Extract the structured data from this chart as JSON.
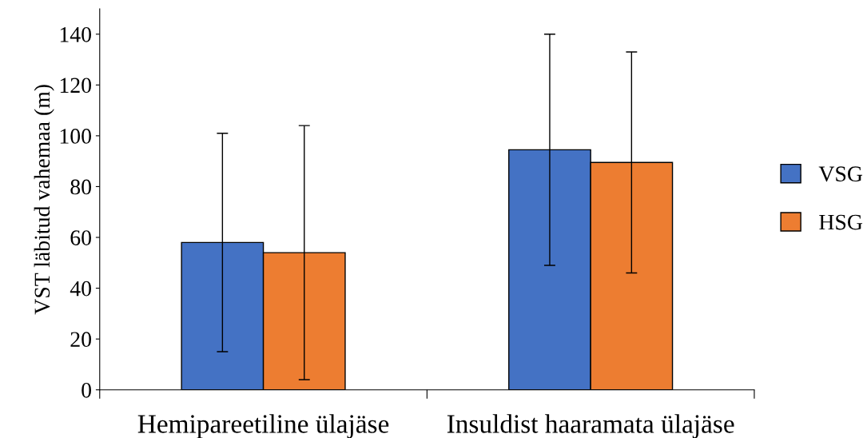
{
  "chart_data": {
    "type": "bar",
    "ylabel": "VST läbitud vahemaa (m)",
    "categories": [
      "Hemipareetiline ülajäse",
      "Insuldist haaramata ülajäse"
    ],
    "series": [
      {
        "name": "VSG",
        "color": "#4472c4",
        "values": [
          58,
          94.5
        ],
        "errors": [
          43,
          45.5
        ]
      },
      {
        "name": "HSG",
        "color": "#ed7d31",
        "values": [
          54,
          89.5
        ],
        "errors": [
          50,
          43.5
        ]
      }
    ],
    "ylim": [
      0,
      150
    ],
    "yticks": [
      0,
      20,
      40,
      60,
      80,
      100,
      120,
      140
    ],
    "grid": false,
    "legend": "right"
  }
}
